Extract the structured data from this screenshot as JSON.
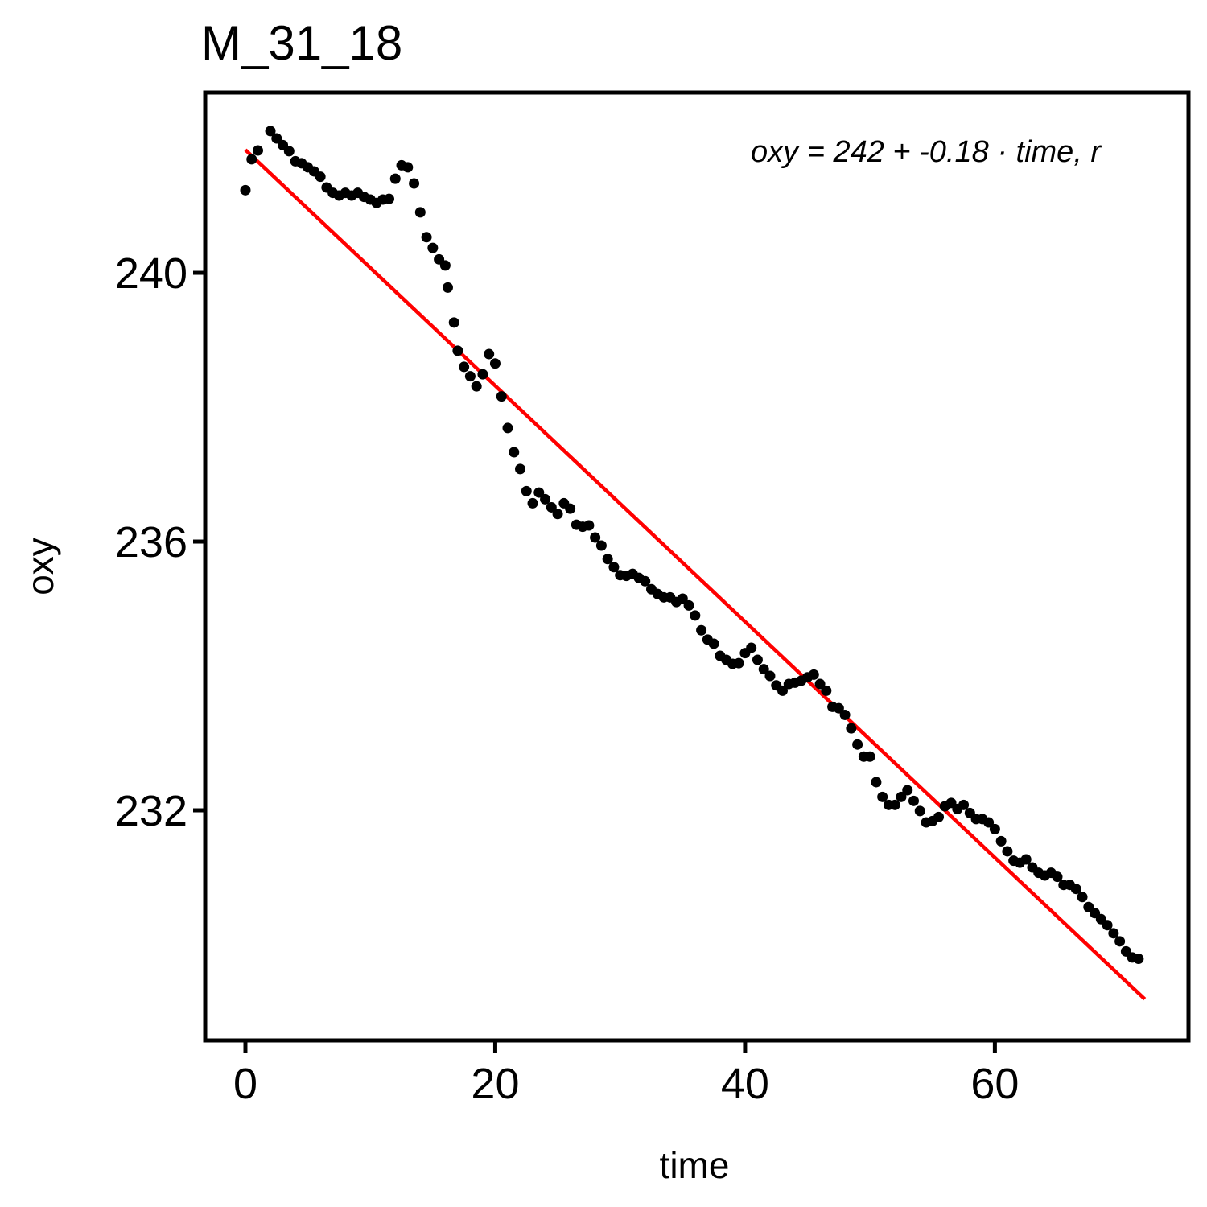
{
  "chart_data": {
    "type": "scatter",
    "title": "M_31_18",
    "xlabel": "time",
    "ylabel": "oxy",
    "annotation": "oxy = 242 + -0.18 · time, r",
    "xlim": [
      -3.22,
      75.5
    ],
    "ylim": [
      228.575,
      242.683
    ],
    "xticks": [
      0,
      20,
      40,
      60
    ],
    "yticks": [
      232,
      236,
      240
    ],
    "points": {
      "color": "#000000",
      "x": [
        0,
        0.5,
        1,
        2,
        2.5,
        3,
        3.5,
        4,
        4.5,
        5,
        5.5,
        6,
        6.5,
        7,
        7.5,
        8,
        8.5,
        9,
        9.5,
        10,
        10.5,
        11,
        11.5,
        12,
        12.5,
        13,
        13.5,
        14,
        14.5,
        15,
        15.5,
        16,
        16.2,
        16.7,
        17,
        17.5,
        18,
        18.5,
        19,
        19.5,
        20,
        20.5,
        21,
        21.5,
        22,
        22.5,
        23,
        23.5,
        24,
        24.5,
        25,
        25.5,
        26,
        26.5,
        27,
        27.5,
        28,
        28.5,
        29,
        29.5,
        30,
        30.5,
        31,
        31.5,
        32,
        32.5,
        33,
        33.5,
        34,
        34.5,
        35,
        35.5,
        36,
        36.5,
        37,
        37.5,
        38,
        38.5,
        39,
        39.5,
        40,
        40.5,
        41,
        41.5,
        42,
        42.5,
        43,
        43.5,
        44,
        44.5,
        45,
        45.5,
        46,
        46.5,
        47,
        47.5,
        48,
        48.5,
        49,
        49.5,
        50,
        50.5,
        51,
        51.5,
        52,
        52.5,
        53,
        53.5,
        54,
        54.5,
        55,
        55.5,
        56,
        56.5,
        57,
        57.5,
        58,
        58.5,
        59,
        59.5,
        60,
        60.5,
        61,
        61.5,
        62,
        62.5,
        63,
        63.5,
        64,
        64.5,
        65,
        65.5,
        66,
        66.5,
        67,
        67.5,
        68,
        68.5,
        69,
        69.5,
        70,
        70.5,
        71,
        71.5
      ],
      "values": [
        241.23,
        241.69,
        241.82,
        242.11,
        242.0,
        241.9,
        241.81,
        241.66,
        241.63,
        241.57,
        241.51,
        241.43,
        241.27,
        241.19,
        241.15,
        241.19,
        241.15,
        241.19,
        241.13,
        241.09,
        241.04,
        241.09,
        241.1,
        241.4,
        241.6,
        241.57,
        241.33,
        240.9,
        240.53,
        240.37,
        240.2,
        240.11,
        239.78,
        239.26,
        238.84,
        238.6,
        238.46,
        238.31,
        238.49,
        238.79,
        238.65,
        238.16,
        237.69,
        237.33,
        237.08,
        236.75,
        236.57,
        236.73,
        236.63,
        236.51,
        236.41,
        236.57,
        236.49,
        236.25,
        236.22,
        236.24,
        236.06,
        235.94,
        235.74,
        235.62,
        235.5,
        235.49,
        235.52,
        235.46,
        235.41,
        235.29,
        235.22,
        235.17,
        235.17,
        235.1,
        235.15,
        235.05,
        234.9,
        234.68,
        234.54,
        234.48,
        234.3,
        234.24,
        234.18,
        234.19,
        234.34,
        234.42,
        234.24,
        234.1,
        234.0,
        233.86,
        233.78,
        233.88,
        233.9,
        233.93,
        233.98,
        234.02,
        233.88,
        233.78,
        233.54,
        233.52,
        233.42,
        233.22,
        232.98,
        232.8,
        232.8,
        232.42,
        232.2,
        232.08,
        232.08,
        232.2,
        232.3,
        232.14,
        231.99,
        231.82,
        231.84,
        231.9,
        232.06,
        232.11,
        232.02,
        232.08,
        231.96,
        231.87,
        231.87,
        231.82,
        231.72,
        231.54,
        231.39,
        231.25,
        231.22,
        231.27,
        231.15,
        231.07,
        231.03,
        231.07,
        231.01,
        230.89,
        230.89,
        230.83,
        230.71,
        230.56,
        230.47,
        230.38,
        230.29,
        230.17,
        230.05,
        229.9,
        229.81,
        229.79
      ]
    },
    "fit": {
      "color": "#ff0000",
      "x": [
        0,
        72
      ],
      "values": [
        241.83,
        229.19
      ]
    }
  }
}
